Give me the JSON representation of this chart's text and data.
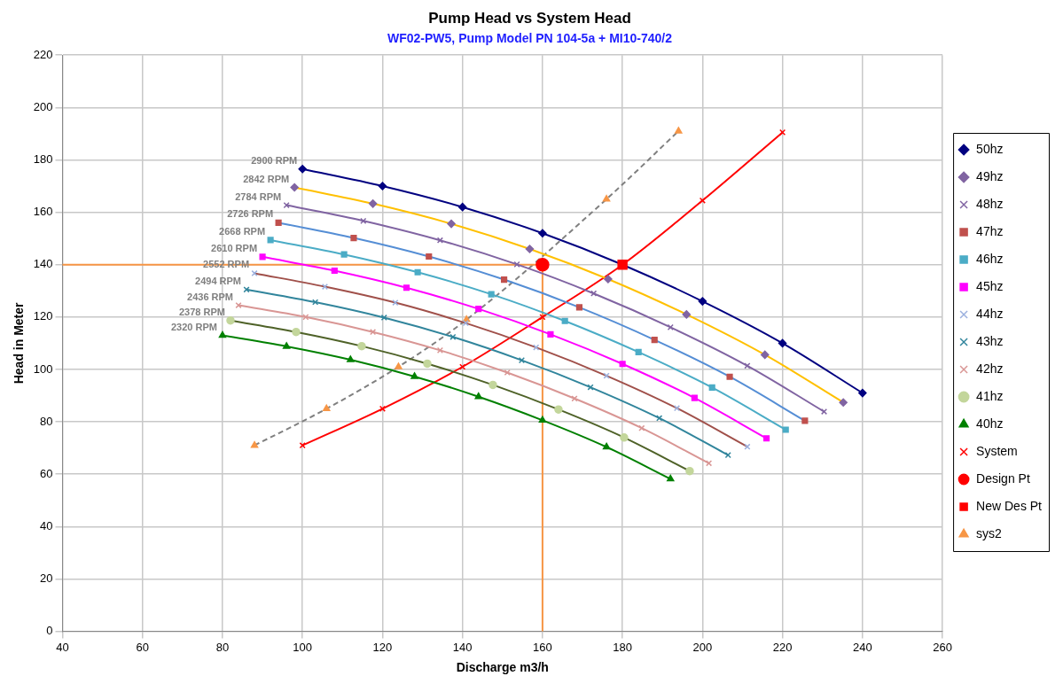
{
  "chart_data": {
    "type": "line",
    "title": "Pump Head vs System Head",
    "subtitle": "WF02-PW5, Pump Model PN 104-5a + MI10-740/2",
    "xlabel": "Discharge m3/h",
    "ylabel": "Head in Meter",
    "xlim": [
      40,
      260
    ],
    "xticks": [
      40,
      60,
      80,
      100,
      120,
      140,
      160,
      180,
      200,
      220,
      240,
      260
    ],
    "ylim": [
      0,
      220
    ],
    "yticks": [
      0,
      20,
      40,
      60,
      80,
      100,
      120,
      140,
      160,
      180,
      200,
      220
    ],
    "grid": true,
    "legend": "right",
    "line_style": "solid",
    "series": [
      {
        "name": "50hz",
        "color": "#000080",
        "marker": "diamond",
        "x": [
          100,
          120,
          140,
          160,
          180,
          200,
          220,
          240
        ],
        "values": [
          176.5,
          170,
          162,
          152,
          140,
          126,
          110,
          91
        ]
      },
      {
        "name": "49hz",
        "color": "#ffc000",
        "colors": [
          "#8064a2",
          "#8064a2",
          "#8064a2",
          "#8064a2",
          "#8064a2",
          "#8064a2",
          "#8064a2",
          "#8064a2"
        ],
        "marker": "diamond",
        "x": [
          98,
          117.6,
          137.2,
          156.8,
          176.4,
          196,
          215.6,
          235.2
        ],
        "values": [
          169.5,
          163.3,
          155.6,
          146,
          134.5,
          121,
          105.6,
          87.4
        ]
      },
      {
        "name": "48hz",
        "color": "#8064a2",
        "marker": "cross",
        "x": [
          96,
          115.2,
          134.4,
          153.6,
          172.8,
          192,
          211.2,
          230.4
        ],
        "values": [
          162.7,
          156.7,
          149.3,
          140.1,
          129,
          116.1,
          101.4,
          83.9
        ]
      },
      {
        "name": "47hz",
        "color": "#558ed5",
        "colors": [
          "#c0504d",
          "#c0504d",
          "#c0504d",
          "#c0504d",
          "#c0504d",
          "#c0504d",
          "#c0504d",
          "#c0504d"
        ],
        "marker": "square",
        "x": [
          94,
          112.8,
          131.6,
          150.4,
          169.2,
          188,
          206.8,
          225.6
        ],
        "values": [
          156,
          150.2,
          143.1,
          134.3,
          123.7,
          111.3,
          97.2,
          80.4
        ]
      },
      {
        "name": "46hz",
        "color": "#4bacc6",
        "marker": "square",
        "x": [
          92,
          110.4,
          128.8,
          147.2,
          165.6,
          184,
          202.4,
          220.8
        ],
        "values": [
          149.4,
          143.9,
          137.1,
          128.7,
          118.5,
          106.6,
          93.1,
          77
        ]
      },
      {
        "name": "45hz",
        "color": "#ff00ff",
        "marker": "square",
        "x": [
          90,
          108,
          126,
          144,
          162,
          180,
          198,
          216
        ],
        "values": [
          143,
          137.7,
          131.2,
          123.1,
          113.4,
          102.1,
          89.1,
          73.7
        ]
      },
      {
        "name": "44hz",
        "color": "#a0504a",
        "colors": [
          "#9bb0de",
          "#9bb0de",
          "#9bb0de",
          "#9bb0de",
          "#9bb0de",
          "#9bb0de",
          "#9bb0de",
          "#9bb0de"
        ],
        "marker": "cross",
        "x": [
          88,
          105.6,
          123.2,
          140.8,
          158.4,
          176,
          193.6,
          211.2
        ],
        "values": [
          136.7,
          131.6,
          125.5,
          117.7,
          108.4,
          97.6,
          85.2,
          70.5
        ]
      },
      {
        "name": "43hz",
        "color": "#31859c",
        "marker": "cross",
        "x": [
          86,
          103.2,
          120.4,
          137.6,
          154.8,
          172,
          189.2,
          206.4
        ],
        "values": [
          130.5,
          125.7,
          119.8,
          112.4,
          103.5,
          93.2,
          81.4,
          67.3
        ]
      },
      {
        "name": "42hz",
        "color": "#d99694",
        "marker": "cross",
        "x": [
          84,
          100.8,
          117.6,
          134.4,
          151.2,
          168,
          184.8,
          201.6
        ],
        "values": [
          124.5,
          120,
          114.3,
          107.3,
          98.8,
          88.9,
          77.6,
          64.2
        ]
      },
      {
        "name": "41hz",
        "color": "#4f6228",
        "colors": [
          "#c3d69b",
          "#c3d69b",
          "#c3d69b",
          "#c3d69b",
          "#c3d69b",
          "#c3d69b",
          "#c3d69b",
          "#c3d69b"
        ],
        "marker": "circle",
        "x": [
          82,
          98.4,
          114.8,
          131.2,
          147.6,
          164,
          180.4,
          196.8
        ],
        "values": [
          118.7,
          114.3,
          108.9,
          102.2,
          94.1,
          84.7,
          74,
          61.2
        ]
      },
      {
        "name": "40hz",
        "color": "#008000",
        "marker": "triangle",
        "x": [
          80,
          96,
          112,
          128,
          144,
          160,
          176,
          192
        ],
        "values": [
          113,
          108.8,
          103.7,
          97.3,
          89.6,
          80.6,
          70.4,
          58.2
        ]
      },
      {
        "name": "System",
        "color": "#ff0000",
        "marker": "cross",
        "x": [
          100,
          120,
          140,
          160,
          180,
          200,
          220
        ],
        "values": [
          71,
          85,
          101,
          120,
          140,
          164.5,
          190.5
        ]
      },
      {
        "color": "#f79646",
        "marker": "none",
        "x": [
          40,
          160,
          160
        ],
        "values": [
          140,
          140,
          0
        ]
      },
      {
        "name": "Design Pt",
        "type": "scatter",
        "color": "#ff0000",
        "marker": "circle",
        "x": [
          160
        ],
        "values": [
          140
        ]
      },
      {
        "name": "New Des Pt",
        "type": "scatter",
        "color": "#ff0000",
        "marker": "square",
        "x": [
          180
        ],
        "values": [
          140
        ]
      },
      {
        "name": "sys2",
        "color": "#808080",
        "colors": [
          "#f79646",
          "#f79646",
          "#f79646",
          "#f79646",
          "#f79646",
          "#f79646",
          "#f79646"
        ],
        "line_style": "dashed",
        "marker": "triangle",
        "x": [
          88,
          106,
          124,
          141,
          159,
          176,
          194
        ],
        "values": [
          71,
          85,
          101,
          119,
          null,
          165,
          191
        ]
      }
    ],
    "annotations": [
      {
        "text": "2900 RPM",
        "x": 100,
        "y": 176.5
      },
      {
        "text": "2842 RPM",
        "x": 98,
        "y": 169.5
      },
      {
        "text": "2784 RPM",
        "x": 96,
        "y": 162.7
      },
      {
        "text": "2726 RPM",
        "x": 94,
        "y": 156
      },
      {
        "text": "2668 RPM",
        "x": 92,
        "y": 149.4
      },
      {
        "text": "2610 RPM",
        "x": 90,
        "y": 143
      },
      {
        "text": "2552 RPM",
        "x": 88,
        "y": 136.7
      },
      {
        "text": "2494 RPM",
        "x": 86,
        "y": 130.5
      },
      {
        "text": "2436 RPM",
        "x": 84,
        "y": 124.5
      },
      {
        "text": "2378 RPM",
        "x": 82,
        "y": 118.7
      },
      {
        "text": "2320 RPM",
        "x": 80,
        "y": 113
      }
    ]
  }
}
